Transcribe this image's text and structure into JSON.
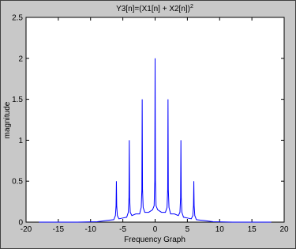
{
  "chart_data": {
    "type": "line",
    "title": "Y3[n]=(X1[n] + X2[n])",
    "title_superscript": "2",
    "x_label": "Frequency Graph",
    "y_label": "magnitude",
    "x": [
      -18,
      -12,
      -9,
      -7.5,
      -6.4,
      -6.15,
      -6.05,
      -6,
      -5.95,
      -5.85,
      -5.6,
      -5,
      -4.4,
      -4.15,
      -4.05,
      -4,
      -3.95,
      -3.85,
      -3.6,
      -3,
      -2.4,
      -2.15,
      -2.05,
      -2,
      -1.95,
      -1.85,
      -1.6,
      -1,
      -0.4,
      -0.15,
      -0.05,
      0,
      0.05,
      0.15,
      0.4,
      1,
      1.6,
      1.85,
      1.95,
      2,
      2.05,
      2.15,
      2.4,
      3,
      3.6,
      3.85,
      3.95,
      4,
      4.05,
      4.15,
      4.4,
      5,
      5.6,
      5.85,
      5.95,
      6,
      6.05,
      6.15,
      6.4,
      7.5,
      9,
      12,
      18
    ],
    "series": [
      {
        "color": "#0000ff",
        "values": [
          0,
          0,
          0.005,
          0.02,
          0.03,
          0.08,
          0.2,
          0.5,
          0.2,
          0.08,
          0.04,
          0.05,
          0.06,
          0.12,
          0.3,
          1,
          0.3,
          0.12,
          0.08,
          0.1,
          0.1,
          0.18,
          0.4,
          1.5,
          0.4,
          0.18,
          0.12,
          0.12,
          0.15,
          0.2,
          0.5,
          2,
          0.5,
          0.2,
          0.15,
          0.12,
          0.12,
          0.18,
          0.4,
          1.5,
          0.4,
          0.18,
          0.1,
          0.1,
          0.08,
          0.12,
          0.3,
          1,
          0.3,
          0.12,
          0.06,
          0.05,
          0.04,
          0.08,
          0.2,
          0.5,
          0.2,
          0.08,
          0.03,
          0.02,
          0.005,
          0,
          0
        ]
      }
    ],
    "xlim": [
      -20,
      20
    ],
    "xticks": [
      -20,
      -15,
      -10,
      -5,
      0,
      5,
      10,
      15,
      20
    ],
    "ylim": [
      0,
      2.5
    ],
    "yticks": [
      0,
      0.5,
      1,
      1.5,
      2,
      2.5
    ]
  }
}
